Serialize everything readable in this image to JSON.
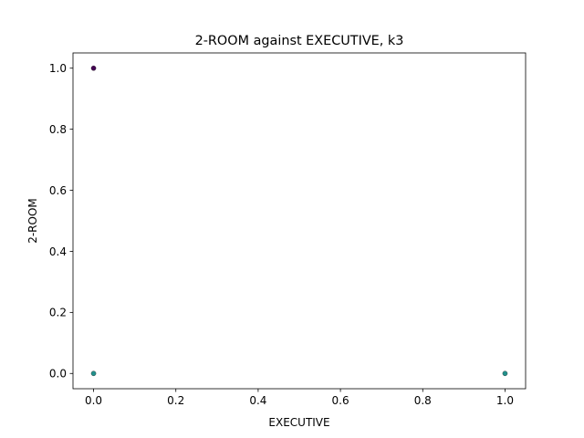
{
  "chart_data": {
    "type": "scatter",
    "title": "2-ROOM against EXECUTIVE, k3",
    "xlabel": "EXECUTIVE",
    "ylabel": "2-ROOM",
    "xlim": [
      -0.05,
      1.05
    ],
    "ylim": [
      -0.05,
      1.05
    ],
    "x_ticks": [
      {
        "value": 0.0,
        "label": "0.0"
      },
      {
        "value": 0.2,
        "label": "0.2"
      },
      {
        "value": 0.4,
        "label": "0.4"
      },
      {
        "value": 0.6,
        "label": "0.6"
      },
      {
        "value": 0.8,
        "label": "0.8"
      },
      {
        "value": 1.0,
        "label": "1.0"
      }
    ],
    "y_ticks": [
      {
        "value": 0.0,
        "label": "0.0"
      },
      {
        "value": 0.2,
        "label": "0.2"
      },
      {
        "value": 0.4,
        "label": "0.4"
      },
      {
        "value": 0.6,
        "label": "0.6"
      },
      {
        "value": 0.8,
        "label": "0.8"
      },
      {
        "value": 1.0,
        "label": "1.0"
      }
    ],
    "grid": false,
    "points": [
      {
        "x": 0,
        "y": 1,
        "color": "#440154"
      },
      {
        "x": 0,
        "y": 0,
        "color": "#21918c"
      },
      {
        "x": 1,
        "y": 0,
        "color": "#21918c"
      }
    ]
  }
}
